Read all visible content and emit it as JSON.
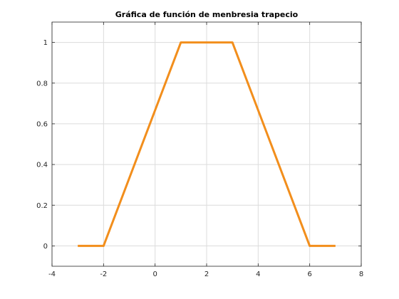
{
  "chart_data": {
    "type": "line",
    "title": "Gráfica de función de menbresia trapecio",
    "xlabel": "",
    "ylabel": "",
    "xlim": [
      -4,
      8
    ],
    "ylim": [
      -0.1,
      1.1
    ],
    "grid": true,
    "x_ticks": [
      -4,
      -2,
      0,
      2,
      4,
      6,
      8
    ],
    "x_tick_labels": [
      "-4",
      "-2",
      "0",
      "2",
      "4",
      "6",
      "8"
    ],
    "y_ticks": [
      0,
      0.2,
      0.4,
      0.6,
      0.8,
      1
    ],
    "y_tick_labels": [
      "0",
      "0.2",
      "0.4",
      "0.6",
      "0.8",
      "1"
    ],
    "series": [
      {
        "color": "#f28e1c",
        "x": [
          -3,
          -2,
          1,
          3,
          6,
          7
        ],
        "y": [
          0,
          0,
          1,
          1,
          0,
          0
        ]
      }
    ]
  }
}
